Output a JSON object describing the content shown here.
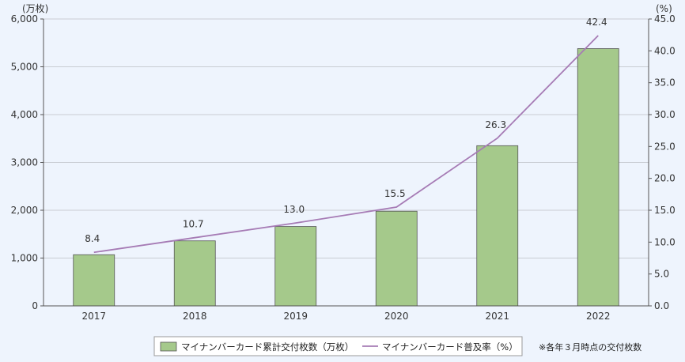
{
  "chart_data": {
    "type": "bar",
    "categories": [
      "2017",
      "2018",
      "2019",
      "2020",
      "2021",
      "2022"
    ],
    "series": [
      {
        "name": "マイナンバーカード累計交付枚数（万枚）",
        "type": "bar",
        "axis": "left",
        "values": [
          1070,
          1360,
          1660,
          1980,
          3350,
          5380
        ],
        "color": "#a5c98b"
      },
      {
        "name": "マイナンバーカード普及率（%）",
        "type": "line",
        "axis": "right",
        "values": [
          8.4,
          10.7,
          13.0,
          15.5,
          26.3,
          42.4
        ],
        "labels": [
          "8.4",
          "10.7",
          "13.0",
          "15.5",
          "26.3",
          "42.4"
        ],
        "color": "#a67bb5"
      }
    ],
    "y_left": {
      "unit": "(万枚)",
      "ylim": [
        0,
        6000
      ],
      "ticks": [
        0,
        1000,
        2000,
        3000,
        4000,
        5000,
        6000
      ],
      "tick_labels": [
        "0",
        "1,000",
        "2,000",
        "3,000",
        "4,000",
        "5,000",
        "6,000"
      ]
    },
    "y_right": {
      "unit": "(%)",
      "ylim": [
        0,
        45
      ],
      "ticks": [
        0,
        5,
        10,
        15,
        20,
        25,
        30,
        35,
        40,
        45
      ],
      "tick_labels": [
        "0.0",
        "5.0",
        "10.0",
        "15.0",
        "20.0",
        "25.0",
        "30.0",
        "35.0",
        "40.0",
        "45.0"
      ]
    },
    "grid": true,
    "legend_position": "bottom-center",
    "note": "※各年３月時点の交付枚数"
  }
}
